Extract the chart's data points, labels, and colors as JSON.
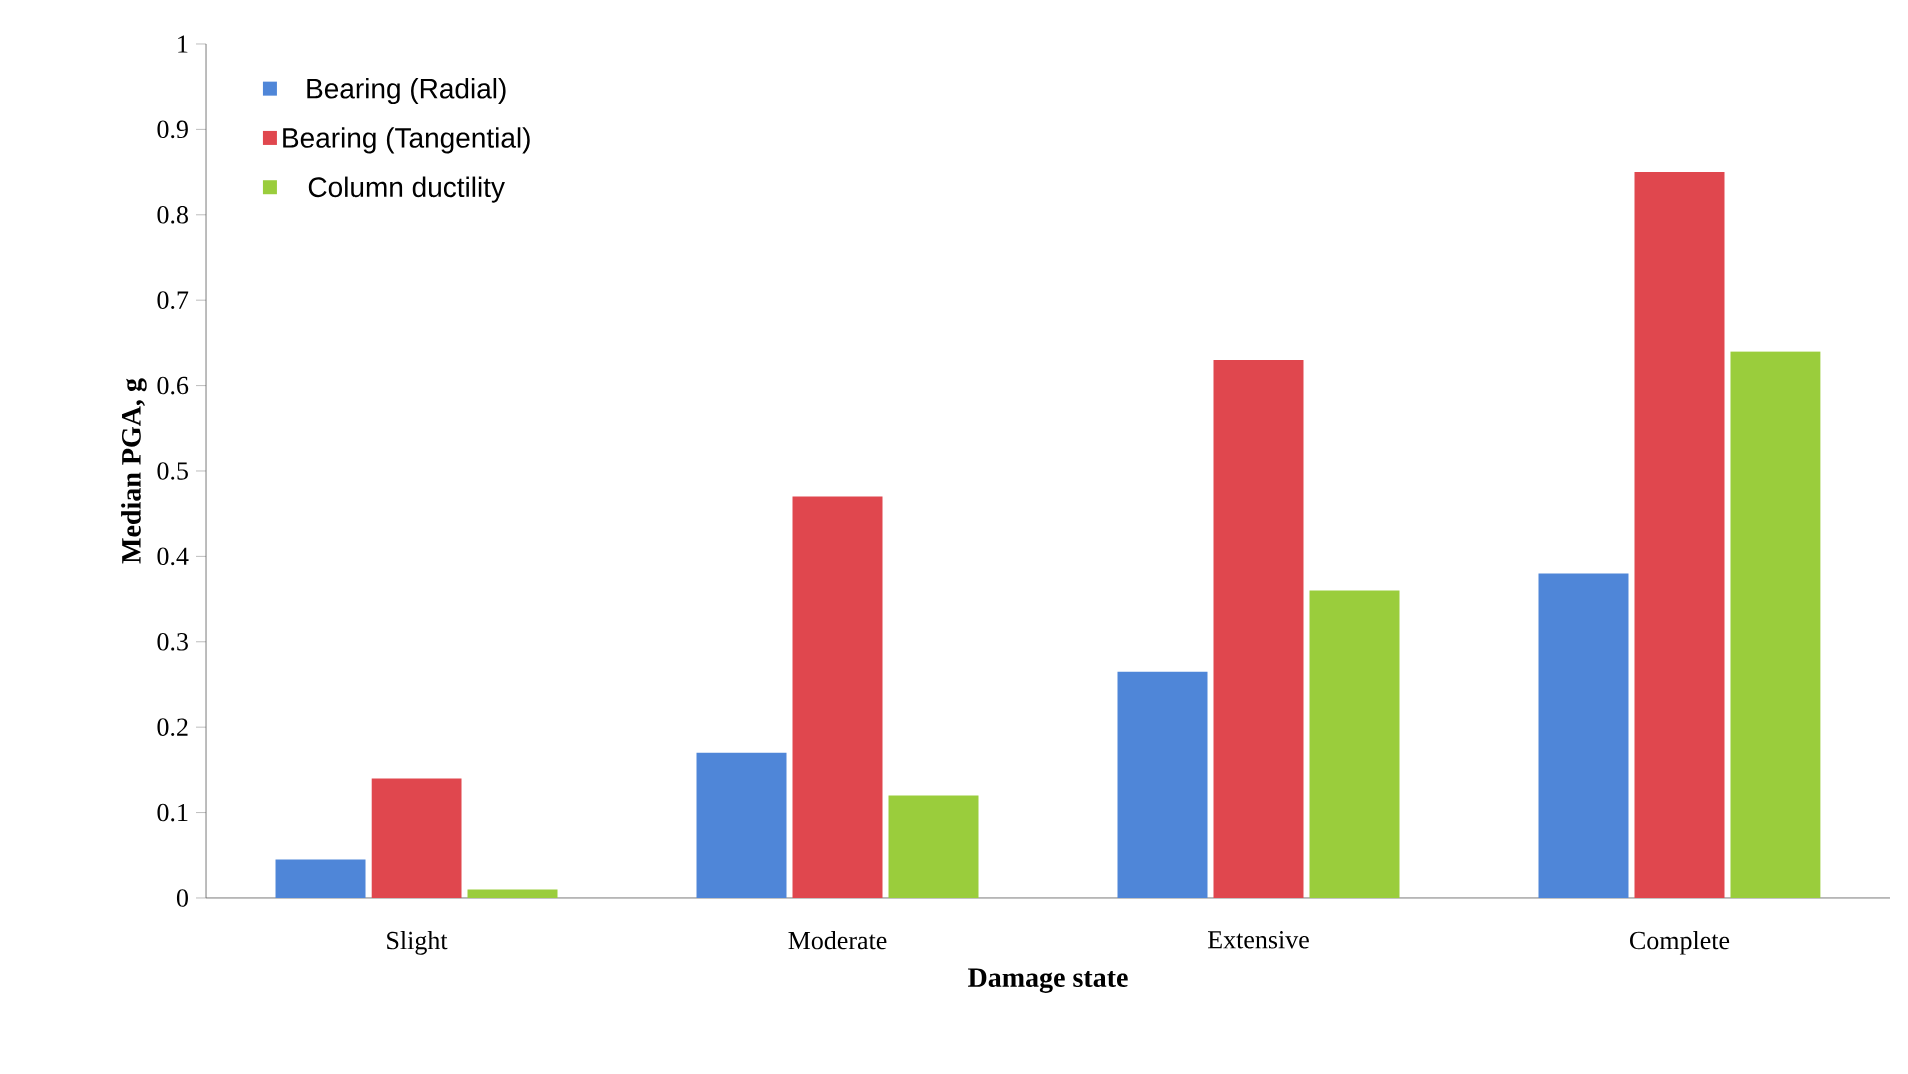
{
  "chart_data": {
    "type": "bar",
    "xlabel": "Damage state",
    "ylabel": "Median PGA, g",
    "categories": [
      "Slight",
      "Moderate",
      "Extensive",
      "Complete"
    ],
    "series": [
      {
        "name": "Bearing (Radial)",
        "color": "#4f86d8",
        "values": [
          0.045,
          0.17,
          0.265,
          0.38
        ]
      },
      {
        "name": "Bearing (Tangential)",
        "color": "#e0474e",
        "values": [
          0.14,
          0.47,
          0.63,
          0.85
        ]
      },
      {
        "name": "Column ductility",
        "color": "#9acd3c",
        "values": [
          0.01,
          0.12,
          0.36,
          0.64
        ]
      }
    ],
    "ylim": [
      0,
      1
    ],
    "yticks": [
      0,
      0.1,
      0.2,
      0.3,
      0.4,
      0.5,
      0.6,
      0.7,
      0.8,
      0.9,
      1
    ],
    "grid": false,
    "legend": "top left"
  }
}
